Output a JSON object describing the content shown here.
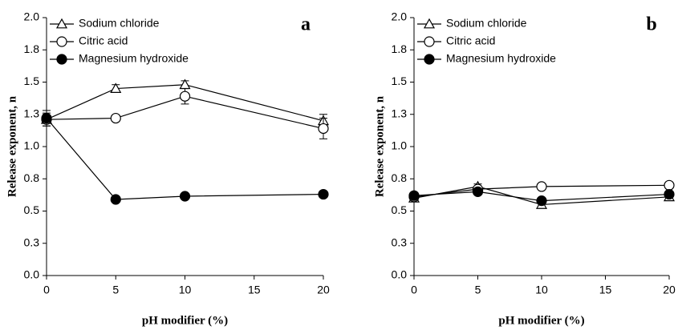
{
  "chart_data": [
    {
      "type": "line",
      "annotation": "a",
      "xlabel": "pH modifier (%)",
      "ylabel": "Release exponent, n",
      "x": [
        0,
        5,
        10,
        20
      ],
      "xlim": [
        0,
        20
      ],
      "xticks": [
        0,
        5,
        10,
        15,
        20
      ],
      "ylim": [
        0,
        2
      ],
      "yticks": [
        {
          "value": 0,
          "label": "0.0"
        },
        {
          "value": 0.25,
          "label": "0.3"
        },
        0.5,
        {
          "value": 0.75,
          "label": "0.8"
        },
        {
          "value": 1,
          "label": "1.0"
        },
        {
          "value": 1.25,
          "label": "1.3"
        },
        1.5,
        {
          "value": 1.75,
          "label": "1.8"
        },
        {
          "value": 2,
          "label": "2.0"
        }
      ],
      "legend": "upper left",
      "series": [
        {
          "name": "Sodium chloride",
          "color": "#000000",
          "marker": "triangle-open",
          "values": [
            1.21,
            1.45,
            1.48,
            1.2
          ],
          "errors": [
            0.05,
            0.03,
            0.03,
            0.05
          ]
        },
        {
          "name": "Citric acid",
          "color": "#000000",
          "marker": "circle-open",
          "values": [
            1.21,
            1.22,
            1.39,
            1.14
          ],
          "errors": [
            0.03,
            0.02,
            0.06,
            0.08
          ]
        },
        {
          "name": "Magnesium hydroxide",
          "color": "#000000",
          "marker": "circle-filled",
          "values": [
            1.22,
            0.59,
            0.615,
            0.63
          ],
          "errors": [
            0.06,
            0.01,
            0.01,
            0.01
          ]
        }
      ]
    },
    {
      "type": "line",
      "annotation": "b",
      "xlabel": "pH modifier (%)",
      "ylabel": "Release exponent, n",
      "x": [
        0,
        5,
        10,
        20
      ],
      "xlim": [
        0,
        20
      ],
      "xticks": [
        0,
        5,
        10,
        15,
        20
      ],
      "ylim": [
        0,
        2
      ],
      "yticks": [
        {
          "value": 0,
          "label": "0.0"
        },
        {
          "value": 0.25,
          "label": "0.3"
        },
        0.5,
        {
          "value": 0.75,
          "label": "0.8"
        },
        {
          "value": 1,
          "label": "1.0"
        },
        {
          "value": 1.25,
          "label": "1.3"
        },
        1.5,
        {
          "value": 1.75,
          "label": "1.8"
        },
        {
          "value": 2,
          "label": "2.0"
        }
      ],
      "legend": "upper left",
      "series": [
        {
          "name": "Sodium chloride",
          "color": "#000000",
          "marker": "triangle-open",
          "values": [
            0.6,
            0.69,
            0.55,
            0.61
          ],
          "errors": [
            0.02,
            0.02,
            0.02,
            0.02
          ]
        },
        {
          "name": "Citric acid",
          "color": "#000000",
          "marker": "circle-open",
          "values": [
            0.61,
            0.67,
            0.69,
            0.7
          ],
          "errors": [
            0.02,
            0.02,
            0.02,
            0.02
          ]
        },
        {
          "name": "Magnesium hydroxide",
          "color": "#000000",
          "marker": "circle-filled",
          "values": [
            0.62,
            0.65,
            0.58,
            0.63
          ],
          "errors": [
            0.02,
            0.02,
            0.02,
            0.02
          ]
        }
      ]
    }
  ]
}
